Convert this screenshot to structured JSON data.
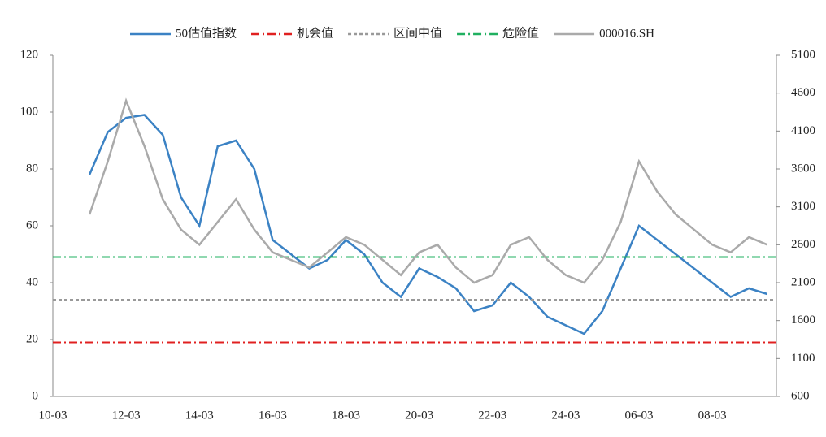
{
  "chart_data": {
    "type": "line",
    "categories": [
      "10-03",
      null,
      null,
      null,
      "12-03",
      null,
      null,
      null,
      "14-03",
      null,
      null,
      null,
      "16-03",
      null,
      null,
      null,
      "18-03",
      null,
      null,
      null,
      "20-03",
      null,
      null,
      null,
      "22-03",
      null,
      null,
      null,
      "24-03",
      null,
      null,
      null,
      "06-03",
      null,
      null,
      null,
      "08-03",
      null,
      null,
      null
    ],
    "ylim": [
      0,
      120
    ],
    "yticks": [
      0,
      20,
      40,
      60,
      80,
      100,
      120
    ],
    "y2lim": [
      600,
      5100
    ],
    "y2ticks": [
      600,
      1100,
      1600,
      2100,
      2600,
      3100,
      3600,
      4100,
      4600,
      5100
    ],
    "series": [
      {
        "name": "50估值指数",
        "color": "#3b82c4",
        "values": [
          null,
          null,
          78,
          93,
          98,
          99,
          92,
          70,
          60,
          88,
          90,
          80,
          55,
          50,
          45,
          48,
          55,
          50,
          40,
          35,
          45,
          42,
          38,
          30,
          32,
          40,
          35,
          28,
          25,
          22,
          30,
          45,
          60,
          55,
          50,
          45,
          40,
          35,
          38,
          36
        ]
      },
      {
        "name": "机会值",
        "color": "#e02020",
        "value": 19
      },
      {
        "name": "区间中值",
        "color": "#999999",
        "value": 34
      },
      {
        "name": "危险值",
        "color": "#20b060",
        "value": 49
      },
      {
        "name": "000016.SH",
        "color": "#aaaaaa",
        "axis": "y2",
        "values": [
          null,
          null,
          3000,
          3700,
          4500,
          3900,
          3200,
          2800,
          2600,
          2900,
          3200,
          2800,
          2500,
          2400,
          2300,
          2500,
          2700,
          2600,
          2400,
          2200,
          2500,
          2600,
          2300,
          2100,
          2200,
          2600,
          2700,
          2400,
          2200,
          2100,
          2400,
          2900,
          3700,
          3300,
          3000,
          2800,
          2600,
          2500,
          2700,
          2600
        ]
      }
    ]
  }
}
